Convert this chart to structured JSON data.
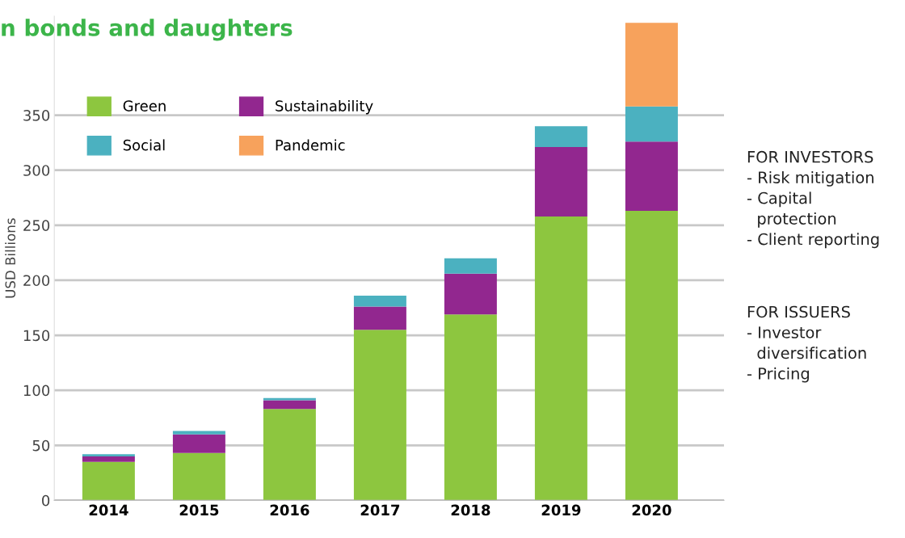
{
  "chart_data": {
    "type": "bar",
    "title": "n bonds and daughters",
    "ylabel": "USD Billions",
    "categories": [
      "2014",
      "2015",
      "2016",
      "2017",
      "2018",
      "2019",
      "2020"
    ],
    "stacked": true,
    "series": [
      {
        "name": "Green",
        "color": "#8dc63f",
        "values": [
          35,
          43,
          83,
          155,
          169,
          258,
          263
        ]
      },
      {
        "name": "Sustainability",
        "color": "#92278f",
        "values": [
          5,
          17,
          8,
          21,
          37,
          63,
          63
        ]
      },
      {
        "name": "Social",
        "color": "#4bb1c0",
        "values": [
          2,
          3,
          2,
          10,
          14,
          19,
          32
        ]
      },
      {
        "name": "Pandemic",
        "color": "#f7a25c",
        "values": [
          null,
          null,
          null,
          null,
          null,
          null,
          76
        ]
      }
    ],
    "ylim": [
      0,
      440
    ],
    "yticks": [
      0,
      50,
      100,
      150,
      200,
      250,
      300,
      350
    ],
    "grid": "y",
    "legend": "top left",
    "annotations": [
      "FOR INVESTORS\n- Risk mitigation\n- Capital\n  protection\n- Client reporting",
      "FOR ISSUERS\n- Investor\n  diversification\n- Pricing"
    ]
  }
}
